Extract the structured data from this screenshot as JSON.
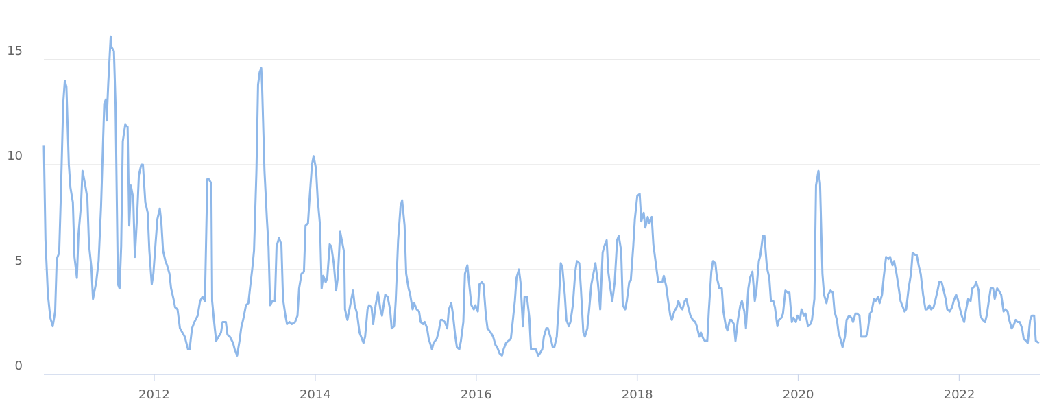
{
  "chart_data": {
    "type": "line",
    "color": "#8fb8e9",
    "grid": true,
    "xlim": [
      2010.63,
      2023.0
    ],
    "xticks": [
      2012,
      2014,
      2016,
      2018,
      2020,
      2022
    ],
    "ylim": [
      0,
      16.5
    ],
    "yticks": [
      0,
      5,
      10,
      15
    ],
    "x": [
      2010.63,
      2010.65,
      2010.68,
      2010.71,
      2010.74,
      2010.77,
      2010.79,
      2010.82,
      2010.84,
      2010.87,
      2010.89,
      2010.91,
      2010.94,
      2010.96,
      2010.99,
      2011.01,
      2011.04,
      2011.06,
      2011.09,
      2011.11,
      2011.14,
      2011.17,
      2011.19,
      2011.22,
      2011.24,
      2011.28,
      2011.31,
      2011.34,
      2011.38,
      2011.4,
      2011.41,
      2011.43,
      2011.46,
      2011.47,
      2011.5,
      2011.52,
      2011.55,
      2011.57,
      2011.59,
      2011.61,
      2011.64,
      2011.67,
      2011.69,
      2011.71,
      2011.74,
      2011.76,
      2011.79,
      2011.81,
      2011.84,
      2011.86,
      2011.89,
      2011.92,
      2011.94,
      2011.97,
      2011.99,
      2012.02,
      2012.04,
      2012.07,
      2012.09,
      2012.11,
      2012.14,
      2012.16,
      2012.19,
      2012.21,
      2012.24,
      2012.26,
      2012.29,
      2012.32,
      2012.35,
      2012.38,
      2012.42,
      2012.44,
      2012.47,
      2012.5,
      2012.54,
      2012.57,
      2012.6,
      2012.63,
      2012.66,
      2012.68,
      2012.71,
      2012.72,
      2012.75,
      2012.77,
      2012.8,
      2012.83,
      2012.85,
      2012.89,
      2012.91,
      2012.94,
      2012.98,
      2013.0,
      2013.03,
      2013.06,
      2013.08,
      2013.11,
      2013.14,
      2013.17,
      2013.19,
      2013.22,
      2013.24,
      2013.27,
      2013.29,
      2013.31,
      2013.33,
      2013.34,
      2013.37,
      2013.4,
      2013.42,
      2013.44,
      2013.47,
      2013.5,
      2013.52,
      2013.55,
      2013.58,
      2013.6,
      2013.63,
      2013.65,
      2013.68,
      2013.71,
      2013.75,
      2013.78,
      2013.8,
      2013.83,
      2013.86,
      2013.88,
      2013.91,
      2013.93,
      2013.96,
      2013.98,
      2014.01,
      2014.03,
      2014.06,
      2014.08,
      2014.1,
      2014.13,
      2014.15,
      2014.18,
      2014.2,
      2014.23,
      2014.26,
      2014.28,
      2014.31,
      2014.33,
      2014.36,
      2014.37,
      2014.4,
      2014.43,
      2014.47,
      2014.49,
      2014.52,
      2014.55,
      2014.57,
      2014.6,
      2014.62,
      2014.65,
      2014.67,
      2014.7,
      2014.72,
      2014.75,
      2014.78,
      2014.81,
      2014.83,
      2014.87,
      2014.9,
      2014.93,
      2014.95,
      2014.98,
      2015.0,
      2015.03,
      2015.06,
      2015.08,
      2015.11,
      2015.13,
      2015.16,
      2015.18,
      2015.21,
      2015.23,
      2015.26,
      2015.29,
      2015.31,
      2015.34,
      2015.36,
      2015.39,
      2015.41,
      2015.45,
      2015.47,
      2015.51,
      2015.53,
      2015.56,
      2015.58,
      2015.61,
      2015.64,
      2015.66,
      2015.69,
      2015.71,
      2015.74,
      2015.76,
      2015.79,
      2015.81,
      2015.84,
      2015.86,
      2015.89,
      2015.91,
      2015.94,
      2015.97,
      2015.99,
      2016.02,
      2016.04,
      2016.07,
      2016.09,
      2016.12,
      2016.14,
      2016.18,
      2016.21,
      2016.24,
      2016.26,
      2016.29,
      2016.32,
      2016.34,
      2016.37,
      2016.4,
      2016.43,
      2016.45,
      2016.48,
      2016.5,
      2016.53,
      2016.55,
      2016.58,
      2016.6,
      2016.63,
      2016.66,
      2016.68,
      2016.71,
      2016.74,
      2016.77,
      2016.79,
      2016.82,
      2016.84,
      2016.87,
      2016.89,
      2016.92,
      2016.95,
      2016.97,
      2017.0,
      2017.02,
      2017.05,
      2017.07,
      2017.1,
      2017.12,
      2017.15,
      2017.17,
      2017.2,
      2017.23,
      2017.25,
      2017.28,
      2017.3,
      2017.33,
      2017.35,
      2017.38,
      2017.4,
      2017.43,
      2017.46,
      2017.48,
      2017.51,
      2017.54,
      2017.57,
      2017.59,
      2017.62,
      2017.64,
      2017.67,
      2017.69,
      2017.72,
      2017.75,
      2017.77,
      2017.8,
      2017.82,
      2017.85,
      2017.87,
      2017.9,
      2017.92,
      2017.95,
      2017.97,
      2018.0,
      2018.03,
      2018.05,
      2018.08,
      2018.1,
      2018.13,
      2018.15,
      2018.18,
      2018.2,
      2018.23,
      2018.26,
      2018.28,
      2018.31,
      2018.33,
      2018.36,
      2018.38,
      2018.41,
      2018.43,
      2018.46,
      2018.49,
      2018.51,
      2018.54,
      2018.56,
      2018.59,
      2018.61,
      2018.64,
      2018.66,
      2018.69,
      2018.72,
      2018.74,
      2018.77,
      2018.79,
      2018.82,
      2018.84,
      2018.87,
      2018.89,
      2018.92,
      2018.94,
      2018.97,
      2018.99,
      2019.02,
      2019.05,
      2019.07,
      2019.1,
      2019.12,
      2019.15,
      2019.17,
      2019.2,
      2019.22,
      2019.25,
      2019.28,
      2019.3,
      2019.33,
      2019.35,
      2019.38,
      2019.4,
      2019.43,
      2019.46,
      2019.48,
      2019.51,
      2019.53,
      2019.56,
      2019.58,
      2019.61,
      2019.64,
      2019.66,
      2019.69,
      2019.71,
      2019.74,
      2019.76,
      2019.79,
      2019.81,
      2019.84,
      2019.87,
      2019.89,
      2019.92,
      2019.94,
      2019.97,
      2019.99,
      2020.02,
      2020.04,
      2020.07,
      2020.09,
      2020.12,
      2020.15,
      2020.17,
      2020.2,
      2020.22,
      2020.25,
      2020.27,
      2020.3,
      2020.32,
      2020.35,
      2020.37,
      2020.4,
      2020.43,
      2020.45,
      2020.48,
      2020.5,
      2020.53,
      2020.55,
      2020.58,
      2020.6,
      2020.63,
      2020.66,
      2020.68,
      2020.71,
      2020.73,
      2020.76,
      2020.78,
      2020.81,
      2020.84,
      2020.86,
      2020.89,
      2020.91,
      2020.94,
      2020.96,
      2020.99,
      2021.01,
      2021.04,
      2021.06,
      2021.09,
      2021.12,
      2021.14,
      2021.17,
      2021.19,
      2021.22,
      2021.24,
      2021.27,
      2021.29,
      2021.32,
      2021.34,
      2021.37,
      2021.4,
      2021.42,
      2021.45,
      2021.47,
      2021.5,
      2021.52,
      2021.55,
      2021.58,
      2021.6,
      2021.63,
      2021.65,
      2021.68,
      2021.7,
      2021.73,
      2021.75,
      2021.78,
      2021.8,
      2021.83,
      2021.85,
      2021.88,
      2021.91,
      2021.93,
      2021.96,
      2021.98,
      2022.01,
      2022.03,
      2022.06,
      2022.08,
      2022.11,
      2022.14,
      2022.16,
      2022.19,
      2022.21,
      2022.24,
      2022.26,
      2022.29,
      2022.32,
      2022.34,
      2022.37,
      2022.39,
      2022.42,
      2022.44,
      2022.47,
      2022.49,
      2022.52,
      2022.55,
      2022.57,
      2022.6,
      2022.62,
      2022.65,
      2022.67,
      2022.7,
      2022.72,
      2022.75,
      2022.78,
      2022.8,
      2022.83,
      2022.85,
      2022.88,
      2022.9,
      2022.93,
      2022.95,
      2022.99
    ],
    "values": [
      10.9,
      6.4,
      3.8,
      2.7,
      2.3,
      3.0,
      5.5,
      5.8,
      8.4,
      12.9,
      14.0,
      13.7,
      10.0,
      8.9,
      8.2,
      5.6,
      4.6,
      6.7,
      8.0,
      9.7,
      9.1,
      8.4,
      6.2,
      5.1,
      3.6,
      4.4,
      5.4,
      8.0,
      12.9,
      13.1,
      12.1,
      13.9,
      16.1,
      15.6,
      15.4,
      12.9,
      4.3,
      4.1,
      6.1,
      11.1,
      11.9,
      11.8,
      7.1,
      9.0,
      8.4,
      5.6,
      7.7,
      9.5,
      10.0,
      10.0,
      8.2,
      7.7,
      5.9,
      4.3,
      4.8,
      6.4,
      7.4,
      7.9,
      7.2,
      5.9,
      5.4,
      5.2,
      4.8,
      4.1,
      3.6,
      3.2,
      3.1,
      2.2,
      2.0,
      1.8,
      1.2,
      1.2,
      2.2,
      2.5,
      2.8,
      3.5,
      3.7,
      3.5,
      9.3,
      9.3,
      9.1,
      3.5,
      2.3,
      1.6,
      1.8,
      2.0,
      2.5,
      2.5,
      1.9,
      1.8,
      1.5,
      1.2,
      0.9,
      1.6,
      2.2,
      2.7,
      3.3,
      3.4,
      4.1,
      5.1,
      5.9,
      9.7,
      13.8,
      14.4,
      14.6,
      13.8,
      9.7,
      7.4,
      6.1,
      3.3,
      3.5,
      3.5,
      6.1,
      6.5,
      6.2,
      3.6,
      2.8,
      2.4,
      2.5,
      2.4,
      2.5,
      2.8,
      4.1,
      4.8,
      4.9,
      7.1,
      7.2,
      8.4,
      10.0,
      10.4,
      9.8,
      8.4,
      7.1,
      4.1,
      4.7,
      4.4,
      4.6,
      6.2,
      6.1,
      5.3,
      4.0,
      4.6,
      6.8,
      6.4,
      5.8,
      3.1,
      2.6,
      3.2,
      4.0,
      3.3,
      2.9,
      2.0,
      1.8,
      1.5,
      1.8,
      3.1,
      3.3,
      3.2,
      2.4,
      3.3,
      3.9,
      3.1,
      2.8,
      3.8,
      3.7,
      3.1,
      2.2,
      2.3,
      3.5,
      6.4,
      8.0,
      8.3,
      7.1,
      4.8,
      4.1,
      3.8,
      3.1,
      3.4,
      3.1,
      3.0,
      2.5,
      2.4,
      2.5,
      2.2,
      1.7,
      1.2,
      1.5,
      1.7,
      2.0,
      2.6,
      2.6,
      2.5,
      2.2,
      3.1,
      3.4,
      2.9,
      1.8,
      1.3,
      1.2,
      1.6,
      2.5,
      4.8,
      5.2,
      4.4,
      3.3,
      3.1,
      3.3,
      3.0,
      4.3,
      4.4,
      4.3,
      2.8,
      2.2,
      2.0,
      1.8,
      1.4,
      1.3,
      1.0,
      0.9,
      1.2,
      1.5,
      1.6,
      1.7,
      2.4,
      3.5,
      4.6,
      5.0,
      4.4,
      2.3,
      3.7,
      3.7,
      2.7,
      1.2,
      1.2,
      1.2,
      0.9,
      1.0,
      1.2,
      1.8,
      2.2,
      2.2,
      1.8,
      1.3,
      1.3,
      1.8,
      3.0,
      5.3,
      5.1,
      3.8,
      2.6,
      2.3,
      2.5,
      3.3,
      4.9,
      5.4,
      5.3,
      4.1,
      2.0,
      1.8,
      2.2,
      3.0,
      4.3,
      4.9,
      5.3,
      4.4,
      3.1,
      5.8,
      6.1,
      6.4,
      4.9,
      4.0,
      3.5,
      4.4,
      6.4,
      6.6,
      5.9,
      3.3,
      3.1,
      3.5,
      4.4,
      4.5,
      6.1,
      7.4,
      8.5,
      8.6,
      7.3,
      7.7,
      7.0,
      7.5,
      7.2,
      7.5,
      6.2,
      5.3,
      4.4,
      4.4,
      4.4,
      4.7,
      4.2,
      3.6,
      2.8,
      2.6,
      3.0,
      3.2,
      3.5,
      3.2,
      3.1,
      3.5,
      3.6,
      3.1,
      2.8,
      2.6,
      2.5,
      2.3,
      1.8,
      2.0,
      1.7,
      1.6,
      1.6,
      3.1,
      4.9,
      5.4,
      5.3,
      4.6,
      4.1,
      4.1,
      3.0,
      2.3,
      2.1,
      2.6,
      2.6,
      2.4,
      1.6,
      2.6,
      3.3,
      3.5,
      3.0,
      2.2,
      4.1,
      4.6,
      4.9,
      3.5,
      4.0,
      5.4,
      5.7,
      6.6,
      6.6,
      5.1,
      4.6,
      3.5,
      3.5,
      3.2,
      2.3,
      2.6,
      2.7,
      2.9,
      4.0,
      3.9,
      3.9,
      2.5,
      2.7,
      2.5,
      2.8,
      2.6,
      3.1,
      2.8,
      2.9,
      2.3,
      2.4,
      2.6,
      3.6,
      9.0,
      9.7,
      9.1,
      4.8,
      3.8,
      3.4,
      3.8,
      4.0,
      3.9,
      3.0,
      2.6,
      2.0,
      1.6,
      1.3,
      1.8,
      2.6,
      2.8,
      2.7,
      2.5,
      2.9,
      2.9,
      2.8,
      1.8,
      1.8,
      1.8,
      2.0,
      2.9,
      3.0,
      3.6,
      3.5,
      3.7,
      3.4,
      3.8,
      4.6,
      5.6,
      5.5,
      5.6,
      5.2,
      5.4,
      4.8,
      4.3,
      3.5,
      3.3,
      3.0,
      3.1,
      4.1,
      4.8,
      5.8,
      5.7,
      5.7,
      5.1,
      4.8,
      3.8,
      3.1,
      3.1,
      3.3,
      3.1,
      3.2,
      3.5,
      4.0,
      4.4,
      4.4,
      4.1,
      3.6,
      3.1,
      3.0,
      3.2,
      3.5,
      3.8,
      3.6,
      3.1,
      2.8,
      2.5,
      3.0,
      3.6,
      3.5,
      4.1,
      4.2,
      4.4,
      4.0,
      2.8,
      2.6,
      2.5,
      2.8,
      3.6,
      4.1,
      4.1,
      3.6,
      4.1,
      4.0,
      3.8,
      3.0,
      3.1,
      3.0,
      2.6,
      2.2,
      2.3,
      2.6,
      2.5,
      2.5,
      2.2,
      1.7,
      1.6,
      1.5,
      2.6,
      2.8,
      2.8,
      1.6,
      1.5
    ]
  }
}
